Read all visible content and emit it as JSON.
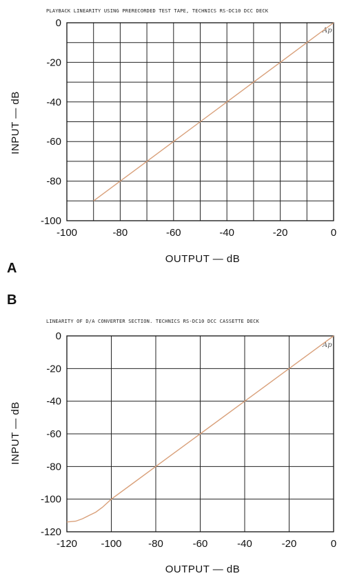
{
  "panels": [
    {
      "panel_label": "A",
      "chart_data": {
        "type": "line",
        "title": "PLAYBACK LINEARITY USING PRERECORDED TEST TAPE, TECHNICS RS-DC10 DCC DECK",
        "xlabel": "OUTPUT — dB",
        "ylabel": "INPUT — dB",
        "xlim": [
          -100,
          0
        ],
        "ylim": [
          -100,
          0
        ],
        "x_ticks": [
          -100,
          -80,
          -60,
          -40,
          -20,
          0
        ],
        "y_ticks": [
          0,
          -20,
          -40,
          -60,
          -80,
          -100
        ],
        "x_grid_step": 10,
        "y_grid_step": 10,
        "grid": true,
        "logo": "Ap",
        "color": "#d9a07a",
        "series": [
          {
            "x": [
              -90,
              -80,
              -70,
              -60,
              -50,
              -40,
              -30,
              -20,
              -10,
              0
            ],
            "y": [
              -90,
              -80,
              -70,
              -60,
              -50,
              -40,
              -30,
              -20,
              -10,
              0
            ]
          }
        ]
      }
    },
    {
      "panel_label": "B",
      "chart_data": {
        "type": "line",
        "title": "LINEARITY OF D/A CONVERTER SECTION.    TECHNICS RS-DC10 DCC CASSETTE DECK",
        "xlabel": "OUTPUT — dB",
        "ylabel": "INPUT — dB",
        "xlim": [
          -120,
          0
        ],
        "ylim": [
          -120,
          0
        ],
        "x_ticks": [
          -120,
          -100,
          -80,
          -60,
          -40,
          -20,
          0
        ],
        "y_ticks": [
          0,
          -20,
          -40,
          -60,
          -80,
          -100,
          -120
        ],
        "x_grid_step": 20,
        "y_grid_step": 20,
        "grid": true,
        "logo": "Ap",
        "color": "#d9a07a",
        "series": [
          {
            "x": [
              -120,
              -116,
              -113,
              -110,
              -107,
              -104,
              -100,
              -90,
              -80,
              -60,
              -40,
              -20,
              0
            ],
            "y": [
              -114,
              -113.5,
              -112,
              -110,
              -108,
              -105,
              -100,
              -90,
              -80,
              -60,
              -40,
              -20,
              0
            ]
          }
        ]
      }
    }
  ]
}
